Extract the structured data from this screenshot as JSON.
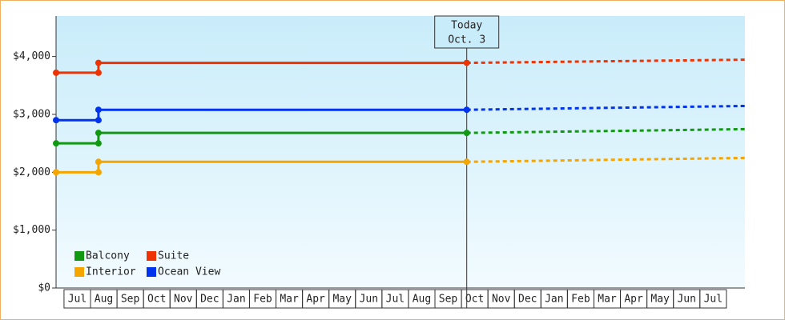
{
  "chart_data": {
    "type": "step-line",
    "xlim": [
      0,
      26
    ],
    "xticks": [
      {
        "value": 0.8,
        "label": "Jul"
      },
      {
        "value": 1.8,
        "label": "Aug"
      },
      {
        "value": 2.8,
        "label": "Sep"
      },
      {
        "value": 3.8,
        "label": "Oct"
      },
      {
        "value": 4.8,
        "label": "Nov"
      },
      {
        "value": 5.8,
        "label": "Dec"
      },
      {
        "value": 6.8,
        "label": "Jan"
      },
      {
        "value": 7.8,
        "label": "Feb"
      },
      {
        "value": 8.8,
        "label": "Mar"
      },
      {
        "value": 9.8,
        "label": "Apr"
      },
      {
        "value": 10.8,
        "label": "May"
      },
      {
        "value": 11.8,
        "label": "Jun"
      },
      {
        "value": 12.8,
        "label": "Jul"
      },
      {
        "value": 13.8,
        "label": "Aug"
      },
      {
        "value": 14.8,
        "label": "Sep"
      },
      {
        "value": 15.8,
        "label": "Oct"
      },
      {
        "value": 16.8,
        "label": "Nov"
      },
      {
        "value": 17.8,
        "label": "Dec"
      },
      {
        "value": 18.8,
        "label": "Jan"
      },
      {
        "value": 19.8,
        "label": "Feb"
      },
      {
        "value": 20.8,
        "label": "Mar"
      },
      {
        "value": 21.8,
        "label": "Apr"
      },
      {
        "value": 22.8,
        "label": "May"
      },
      {
        "value": 23.8,
        "label": "Jun"
      },
      {
        "value": 24.8,
        "label": "Jul"
      }
    ],
    "ylim": [
      0,
      4700
    ],
    "yticks": [
      {
        "value": 0,
        "label": "$0"
      },
      {
        "value": 1000,
        "label": "$1,000"
      },
      {
        "value": 2000,
        "label": "$2,000"
      },
      {
        "value": 3000,
        "label": "$3,000"
      },
      {
        "value": 4000,
        "label": "$4,000"
      }
    ],
    "annotation": {
      "x": 15.5,
      "lines": [
        "Today",
        "Oct. 3"
      ]
    },
    "legend": "bottom-left",
    "series": [
      {
        "name": "Balcony",
        "color": "#119911",
        "x": [
          0,
          1.6,
          1.6,
          15.5
        ],
        "values": [
          2500,
          2500,
          2680,
          2680
        ],
        "forecast": {
          "x": [
            15.5,
            26
          ],
          "values": [
            2680,
            2745
          ]
        }
      },
      {
        "name": "Interior",
        "color": "#f5a500",
        "x": [
          0,
          1.6,
          1.6,
          15.5
        ],
        "values": [
          2000,
          2000,
          2180,
          2180
        ],
        "forecast": {
          "x": [
            15.5,
            26
          ],
          "values": [
            2180,
            2248
          ]
        }
      },
      {
        "name": "Suite",
        "color": "#ee3300",
        "x": [
          0,
          1.6,
          1.6,
          15.5
        ],
        "values": [
          3720,
          3720,
          3890,
          3890
        ],
        "forecast": {
          "x": [
            15.5,
            26
          ],
          "values": [
            3890,
            3945
          ]
        }
      },
      {
        "name": "Ocean View",
        "color": "#0033ee",
        "x": [
          0,
          1.6,
          1.6,
          15.5
        ],
        "values": [
          2900,
          2900,
          3080,
          3080
        ],
        "forecast": {
          "x": [
            15.5,
            26
          ],
          "values": [
            3080,
            3145
          ]
        }
      }
    ]
  }
}
